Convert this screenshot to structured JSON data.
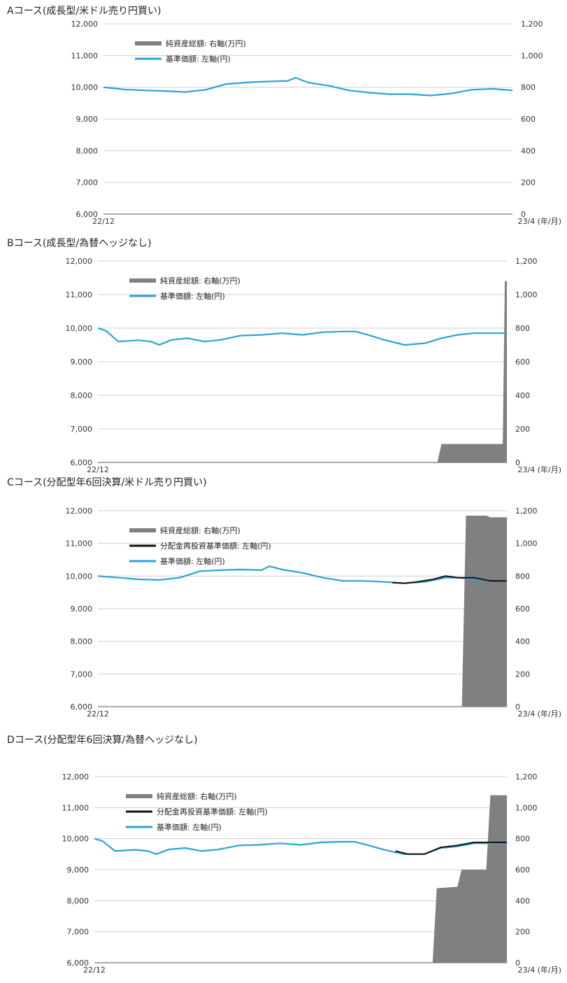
{
  "chart_data": [
    {
      "title": "Aコース(成長型/米ドル売り円買い)",
      "type": "line",
      "left_axis": {
        "ylim": [
          6000,
          12000
        ],
        "ticks": [
          "12,000",
          "11,000",
          "10,000",
          "9,000",
          "8,000",
          "7,000",
          "6,000"
        ]
      },
      "right_axis": {
        "ylim": [
          0,
          1200
        ],
        "ticks": [
          "1,200",
          "1,000",
          "800",
          "600",
          "400",
          "200",
          "0"
        ]
      },
      "x_start_label": "22/12",
      "x_end_label": "23/4 (年/月)",
      "legend_placement": "top-left",
      "legend": [
        "純資産総額: 右軸(万円)",
        "基準価額: 左軸(円)"
      ],
      "colors": {
        "nav": "#2ba3d3",
        "net_assets": "#808080",
        "reinvested": "#111111"
      },
      "grid": true,
      "nav": [
        [
          0,
          10000
        ],
        [
          0.05,
          9930
        ],
        [
          0.1,
          9900
        ],
        [
          0.15,
          9880
        ],
        [
          0.2,
          9850
        ],
        [
          0.25,
          9920
        ],
        [
          0.3,
          10100
        ],
        [
          0.35,
          10150
        ],
        [
          0.4,
          10180
        ],
        [
          0.45,
          10200
        ],
        [
          0.47,
          10300
        ],
        [
          0.5,
          10150
        ],
        [
          0.55,
          10050
        ],
        [
          0.6,
          9900
        ],
        [
          0.65,
          9830
        ],
        [
          0.7,
          9780
        ],
        [
          0.75,
          9780
        ],
        [
          0.8,
          9740
        ],
        [
          0.85,
          9800
        ],
        [
          0.9,
          9920
        ],
        [
          0.95,
          9950
        ],
        [
          1.0,
          9900
        ]
      ],
      "net_assets": []
    },
    {
      "title": "Bコース(成長型/為替ヘッジなし)",
      "type": "line+area",
      "left_axis": {
        "ylim": [
          6000,
          12000
        ],
        "ticks": [
          "12,000",
          "11,000",
          "10,000",
          "9,000",
          "8,000",
          "7,000",
          "6,000"
        ]
      },
      "right_axis": {
        "ylim": [
          0,
          1200
        ],
        "ticks": [
          "1,200",
          "1,000",
          "800",
          "600",
          "400",
          "200",
          "0"
        ]
      },
      "x_start_label": "22/12",
      "x_end_label": "23/4 (年/月)",
      "legend_placement": "top-left",
      "legend": [
        "純資産総額: 右軸(万円)",
        "基準価額: 左軸(円)"
      ],
      "colors": {
        "nav": "#2ba3d3",
        "net_assets": "#808080",
        "reinvested": "#111111"
      },
      "grid": true,
      "nav": [
        [
          0,
          10000
        ],
        [
          0.02,
          9920
        ],
        [
          0.05,
          9600
        ],
        [
          0.1,
          9640
        ],
        [
          0.13,
          9600
        ],
        [
          0.15,
          9500
        ],
        [
          0.18,
          9650
        ],
        [
          0.22,
          9700
        ],
        [
          0.26,
          9600
        ],
        [
          0.3,
          9650
        ],
        [
          0.35,
          9780
        ],
        [
          0.4,
          9800
        ],
        [
          0.45,
          9850
        ],
        [
          0.5,
          9800
        ],
        [
          0.55,
          9880
        ],
        [
          0.6,
          9900
        ],
        [
          0.63,
          9900
        ],
        [
          0.66,
          9800
        ],
        [
          0.7,
          9650
        ],
        [
          0.75,
          9500
        ],
        [
          0.8,
          9550
        ],
        [
          0.84,
          9700
        ],
        [
          0.88,
          9800
        ],
        [
          0.92,
          9850
        ],
        [
          0.95,
          9850
        ],
        [
          1.0,
          9850
        ]
      ],
      "net_assets": [
        [
          0.83,
          0
        ],
        [
          0.84,
          110
        ],
        [
          0.99,
          110
        ],
        [
          0.995,
          1080
        ],
        [
          1.0,
          1080
        ]
      ]
    },
    {
      "title": "Cコース(分配型年6回決算/米ドル売り円買い)",
      "type": "line+area",
      "left_axis": {
        "ylim": [
          6000,
          12000
        ],
        "ticks": [
          "12,000",
          "11,000",
          "10,000",
          "9,000",
          "8,000",
          "7,000",
          "6,000"
        ]
      },
      "right_axis": {
        "ylim": [
          0,
          1200
        ],
        "ticks": [
          "1,200",
          "1,000",
          "800",
          "600",
          "400",
          "200",
          "0"
        ]
      },
      "x_start_label": "22/12",
      "x_end_label": "23/4 (年/月)",
      "legend_placement": "top-left",
      "legend": [
        "純資産総額: 右軸(万円)",
        "分配金再投資基準価額: 左軸(円)",
        "基準価額: 左軸(円)"
      ],
      "colors": {
        "nav": "#2ba3d3",
        "net_assets": "#808080",
        "reinvested": "#111111"
      },
      "grid": true,
      "nav": [
        [
          0,
          10000
        ],
        [
          0.05,
          9950
        ],
        [
          0.1,
          9900
        ],
        [
          0.15,
          9880
        ],
        [
          0.2,
          9950
        ],
        [
          0.25,
          10150
        ],
        [
          0.3,
          10180
        ],
        [
          0.35,
          10200
        ],
        [
          0.4,
          10180
        ],
        [
          0.42,
          10300
        ],
        [
          0.45,
          10200
        ],
        [
          0.5,
          10100
        ],
        [
          0.55,
          9950
        ],
        [
          0.6,
          9850
        ],
        [
          0.65,
          9850
        ],
        [
          0.7,
          9820
        ],
        [
          0.75,
          9780
        ],
        [
          0.8,
          9820
        ],
        [
          0.85,
          9950
        ],
        [
          0.88,
          9950
        ],
        [
          0.92,
          9900
        ],
        [
          0.96,
          9850
        ],
        [
          1.0,
          9850
        ]
      ],
      "reinvested": [
        [
          0.72,
          9800
        ],
        [
          0.75,
          9780
        ],
        [
          0.78,
          9820
        ],
        [
          0.82,
          9900
        ],
        [
          0.85,
          10000
        ],
        [
          0.88,
          9950
        ],
        [
          0.92,
          9950
        ],
        [
          0.96,
          9850
        ],
        [
          1.0,
          9850
        ]
      ],
      "net_assets": [
        [
          0.89,
          0
        ],
        [
          0.9,
          1170
        ],
        [
          0.95,
          1170
        ],
        [
          0.96,
          1160
        ],
        [
          1.0,
          1160
        ]
      ]
    },
    {
      "title": "Dコース(分配型年6回決算/為替ヘッジなし)",
      "type": "line+area",
      "left_axis": {
        "ylim": [
          6000,
          12000
        ],
        "ticks": [
          "12,000",
          "11,000",
          "10,000",
          "9,000",
          "8,000",
          "7,000",
          "6,000"
        ]
      },
      "right_axis": {
        "ylim": [
          0,
          1200
        ],
        "ticks": [
          "1,200",
          "1,000",
          "800",
          "600",
          "400",
          "200",
          "0"
        ]
      },
      "x_start_label": "22/12",
      "x_end_label": "23/4 (年/月)",
      "legend_placement": "top-left",
      "legend": [
        "純資産総額: 右軸(万円)",
        "分配金再投資基準価額: 左軸(円)",
        "基準価額: 左軸(円)"
      ],
      "colors": {
        "nav": "#2ba3d3",
        "net_assets": "#808080",
        "reinvested": "#111111"
      },
      "grid": true,
      "nav": [
        [
          0,
          10000
        ],
        [
          0.02,
          9920
        ],
        [
          0.05,
          9600
        ],
        [
          0.1,
          9640
        ],
        [
          0.13,
          9600
        ],
        [
          0.15,
          9500
        ],
        [
          0.18,
          9650
        ],
        [
          0.22,
          9700
        ],
        [
          0.26,
          9600
        ],
        [
          0.3,
          9650
        ],
        [
          0.35,
          9780
        ],
        [
          0.4,
          9800
        ],
        [
          0.45,
          9850
        ],
        [
          0.5,
          9800
        ],
        [
          0.55,
          9880
        ],
        [
          0.6,
          9900
        ],
        [
          0.63,
          9900
        ],
        [
          0.66,
          9800
        ],
        [
          0.7,
          9650
        ],
        [
          0.75,
          9500
        ],
        [
          0.8,
          9500
        ],
        [
          0.84,
          9700
        ],
        [
          0.88,
          9750
        ],
        [
          0.92,
          9850
        ],
        [
          0.95,
          9850
        ],
        [
          1.0,
          9850
        ]
      ],
      "reinvested": [
        [
          0.73,
          9600
        ],
        [
          0.76,
          9500
        ],
        [
          0.8,
          9500
        ],
        [
          0.84,
          9720
        ],
        [
          0.88,
          9780
        ],
        [
          0.92,
          9880
        ],
        [
          0.95,
          9880
        ],
        [
          1.0,
          9880
        ]
      ],
      "net_assets": [
        [
          0.82,
          0
        ],
        [
          0.83,
          480
        ],
        [
          0.88,
          490
        ],
        [
          0.89,
          600
        ],
        [
          0.95,
          600
        ],
        [
          0.96,
          1080
        ],
        [
          1.0,
          1080
        ]
      ]
    }
  ]
}
